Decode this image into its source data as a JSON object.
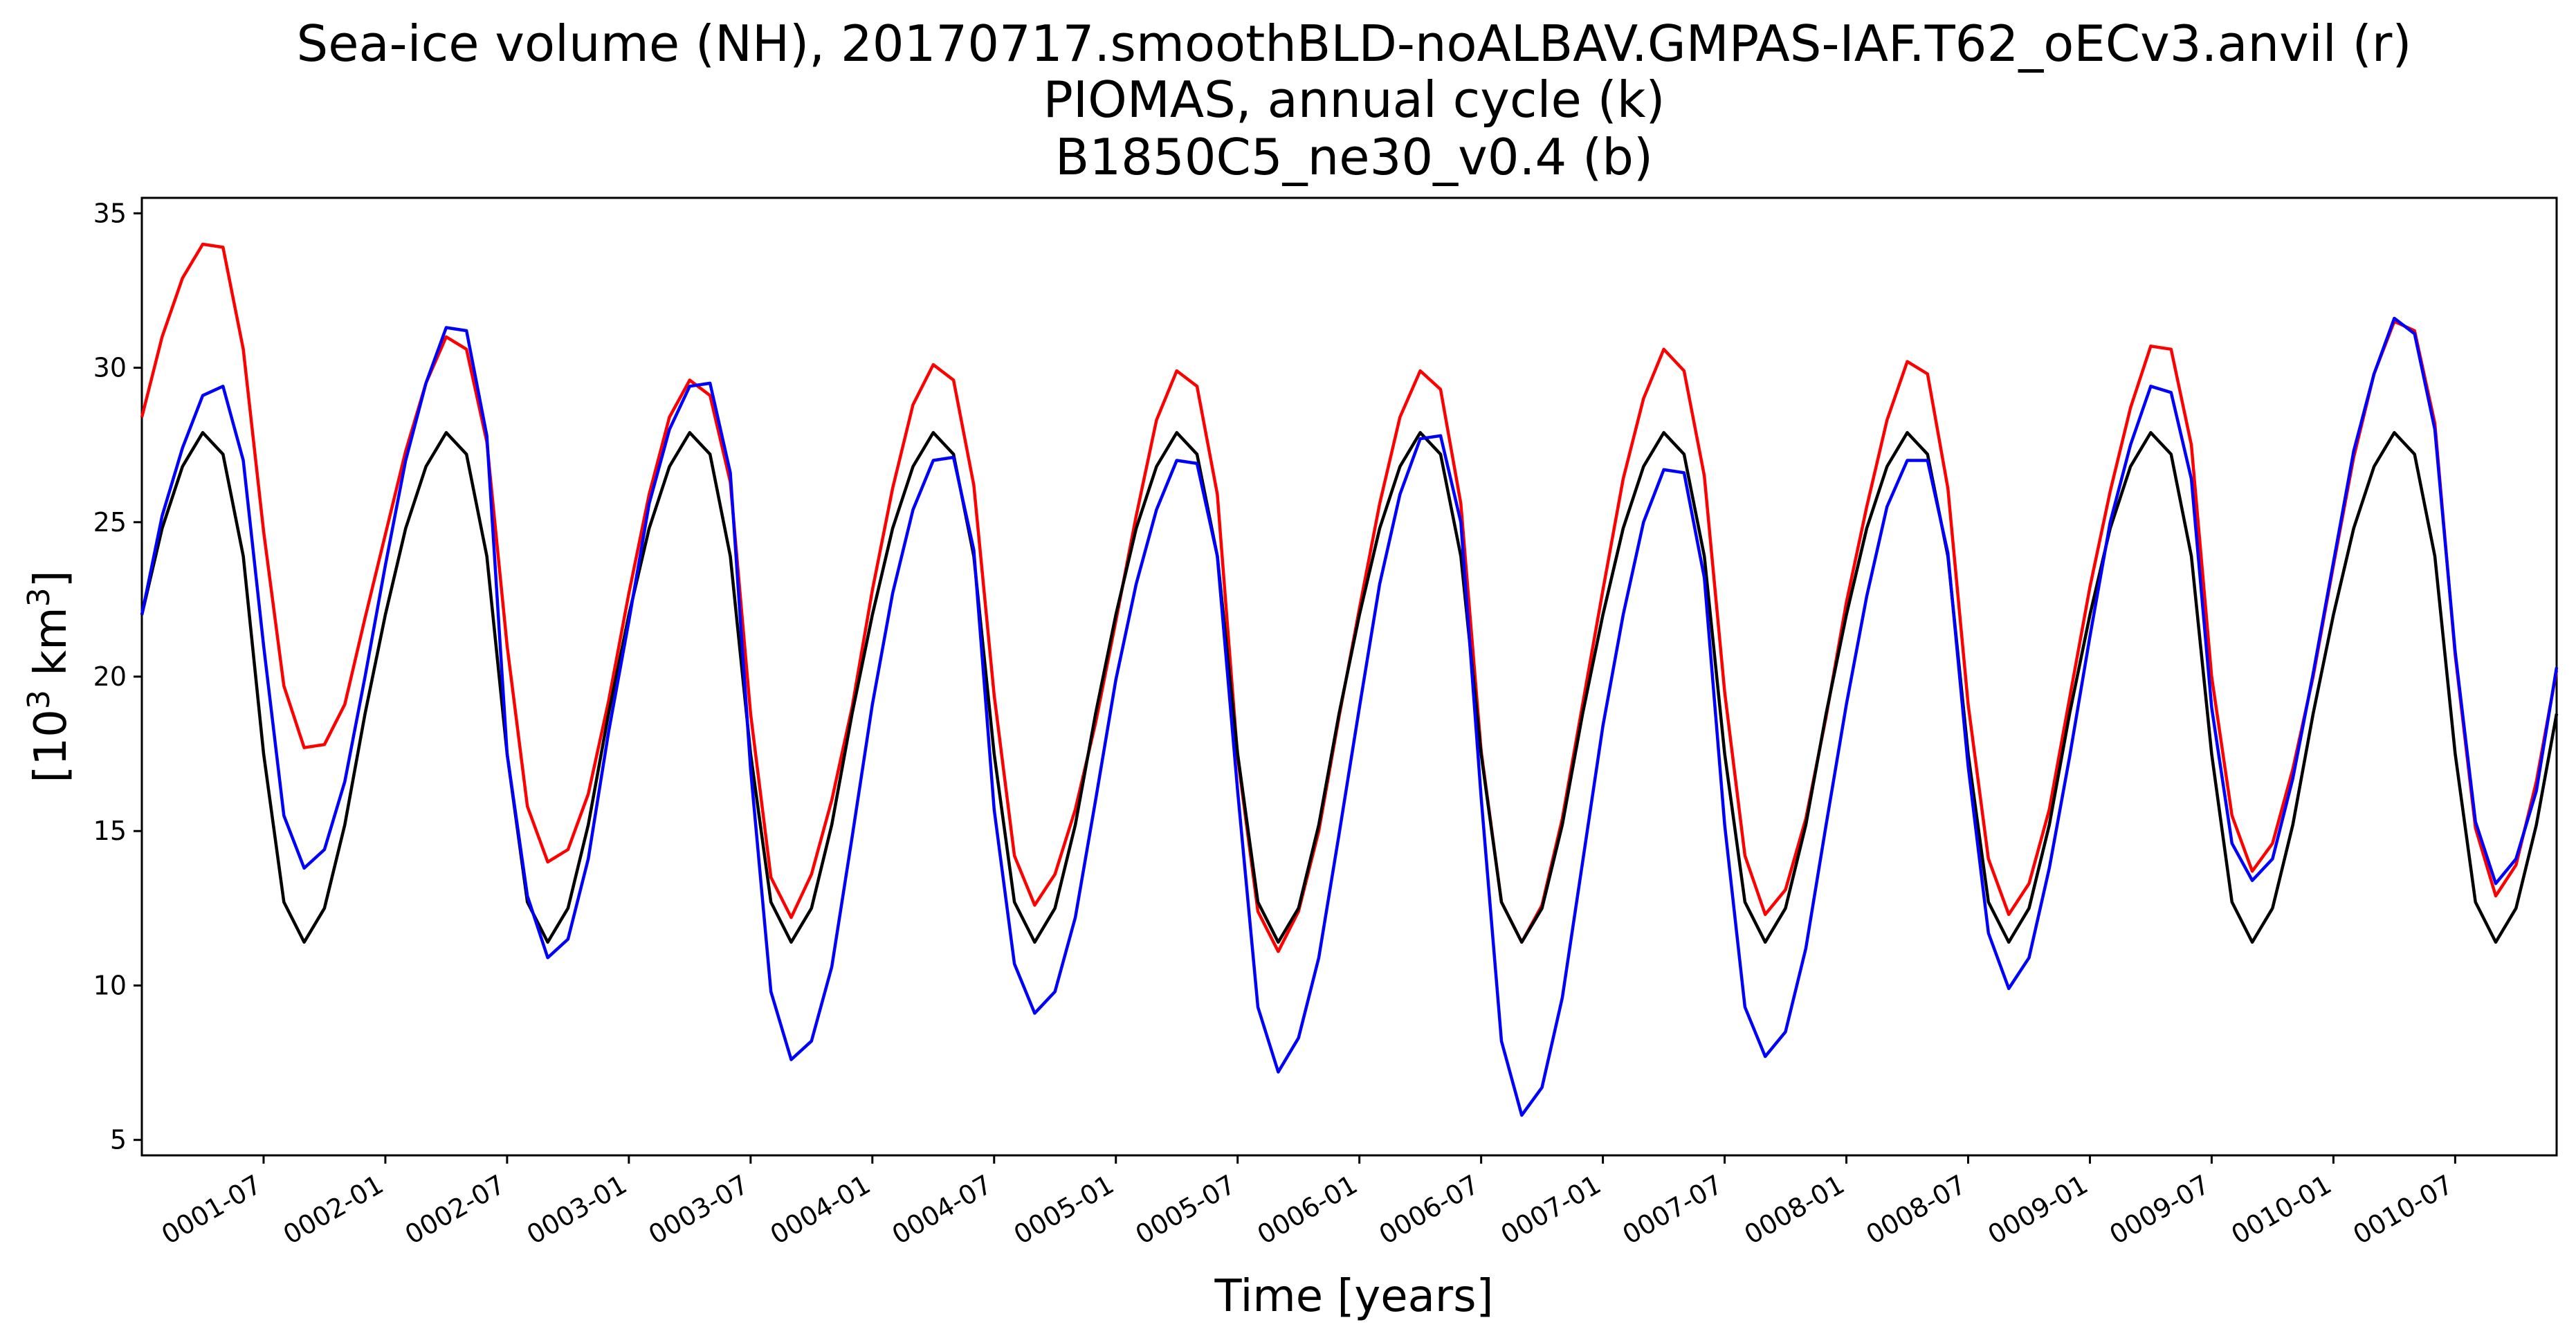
{
  "chart_data": {
    "type": "line",
    "title_lines": [
      "Sea-ice volume (NH), 20170717.smoothBLD-noALBAV.GMPAS-IAF.T62_oECv3.anvil (r)",
      "PIOMAS, annual cycle (k)",
      "B1850C5_ne30_v0.4 (b)"
    ],
    "xlabel": "Time [years]",
    "ylabel_main": "[10",
    "ylabel_exp1": "3",
    "ylabel_mid": " km",
    "ylabel_exp2": "3",
    "ylabel_end": "]",
    "x_start": "0001-01",
    "xlim": [
      "0001-01",
      "0010-12"
    ],
    "ylim": [
      4.5,
      35.5
    ],
    "yticks": [
      5,
      10,
      15,
      20,
      25,
      30,
      35
    ],
    "xticks": [
      "0001-07",
      "0002-01",
      "0002-07",
      "0003-01",
      "0003-07",
      "0004-01",
      "0004-07",
      "0005-01",
      "0005-07",
      "0006-01",
      "0006-07",
      "0007-01",
      "0007-07",
      "0008-01",
      "0008-07",
      "0009-01",
      "0009-07",
      "0010-01",
      "0010-07"
    ],
    "grid": false,
    "colors": {
      "r": "#ff0000",
      "k": "#000000",
      "b": "#0000ff"
    },
    "series": [
      {
        "color": "#ff0000",
        "values": [
          28.4,
          31.0,
          32.9,
          34.0,
          33.9,
          30.6,
          24.7,
          19.7,
          17.7,
          17.8,
          19.1,
          21.9,
          24.6,
          27.3,
          29.5,
          31.0,
          30.6,
          27.6,
          21.0,
          15.8,
          14.0,
          14.4,
          16.2,
          19.2,
          22.7,
          25.9,
          28.4,
          29.6,
          29.1,
          26.3,
          18.8,
          13.5,
          12.2,
          13.6,
          16.0,
          19.0,
          22.8,
          26.1,
          28.8,
          30.1,
          29.6,
          26.2,
          19.4,
          14.2,
          12.6,
          13.6,
          15.7,
          18.5,
          21.8,
          25.2,
          28.3,
          29.9,
          29.4,
          25.9,
          17.4,
          12.4,
          11.1,
          12.4,
          15.0,
          18.7,
          22.2,
          25.6,
          28.4,
          29.9,
          29.3,
          25.6,
          17.6,
          12.7,
          11.4,
          12.6,
          15.4,
          19.1,
          22.8,
          26.4,
          29.0,
          30.6,
          29.9,
          26.5,
          19.5,
          14.2,
          12.3,
          13.1,
          15.4,
          18.7,
          22.4,
          25.5,
          28.3,
          30.2,
          29.8,
          26.1,
          19.1,
          14.1,
          12.3,
          13.3,
          15.7,
          19.3,
          22.9,
          26.0,
          28.7,
          30.7,
          30.6,
          27.5,
          20.0,
          15.5,
          13.7,
          14.6,
          17.0,
          20.0,
          23.6,
          27.1,
          29.8,
          31.5,
          31.2,
          28.2,
          20.7,
          15.1,
          12.9,
          13.9,
          16.6,
          20.2
        ]
      },
      {
        "color": "#000000",
        "values": [
          22.0,
          24.8,
          26.8,
          27.9,
          27.2,
          23.9,
          17.5,
          12.7,
          11.4,
          12.5,
          15.2,
          18.8,
          22.0,
          24.8,
          26.8,
          27.9,
          27.2,
          23.9,
          17.5,
          12.7,
          11.4,
          12.5,
          15.2,
          18.8,
          22.0,
          24.8,
          26.8,
          27.9,
          27.2,
          23.9,
          17.5,
          12.7,
          11.4,
          12.5,
          15.2,
          18.8,
          22.0,
          24.8,
          26.8,
          27.9,
          27.2,
          23.9,
          17.5,
          12.7,
          11.4,
          12.5,
          15.2,
          18.8,
          22.0,
          24.8,
          26.8,
          27.9,
          27.2,
          23.9,
          17.5,
          12.7,
          11.4,
          12.5,
          15.2,
          18.8,
          22.0,
          24.8,
          26.8,
          27.9,
          27.2,
          23.9,
          17.5,
          12.7,
          11.4,
          12.5,
          15.2,
          18.8,
          22.0,
          24.8,
          26.8,
          27.9,
          27.2,
          23.9,
          17.5,
          12.7,
          11.4,
          12.5,
          15.2,
          18.8,
          22.0,
          24.8,
          26.8,
          27.9,
          27.2,
          23.9,
          17.5,
          12.7,
          11.4,
          12.5,
          15.2,
          18.8,
          22.0,
          24.8,
          26.8,
          27.9,
          27.2,
          23.9,
          17.5,
          12.7,
          11.4,
          12.5,
          15.2,
          18.8,
          22.0,
          24.8,
          26.8,
          27.9,
          27.2,
          23.9,
          17.5,
          12.7,
          11.4,
          12.5,
          15.2,
          18.8
        ]
      },
      {
        "color": "#0000ff",
        "values": [
          22.0,
          25.2,
          27.4,
          29.1,
          29.4,
          27.0,
          21.0,
          15.5,
          13.8,
          14.4,
          16.6,
          20.0,
          23.6,
          27.0,
          29.5,
          31.3,
          31.2,
          27.8,
          17.5,
          12.9,
          10.9,
          11.5,
          14.1,
          18.2,
          21.8,
          25.6,
          28.0,
          29.4,
          29.5,
          26.6,
          17.0,
          9.8,
          7.6,
          8.2,
          10.6,
          14.8,
          19.1,
          22.7,
          25.4,
          27.0,
          27.1,
          24.1,
          15.7,
          10.7,
          9.1,
          9.8,
          12.2,
          16.0,
          19.9,
          23.0,
          25.4,
          27.0,
          26.9,
          23.9,
          16.3,
          9.3,
          7.2,
          8.3,
          10.9,
          14.9,
          19.0,
          23.0,
          25.9,
          27.7,
          27.8,
          25.0,
          16.1,
          8.2,
          5.8,
          6.7,
          9.6,
          14.0,
          18.4,
          22.0,
          25.0,
          26.7,
          26.6,
          23.2,
          15.2,
          9.3,
          7.7,
          8.5,
          11.2,
          15.2,
          19.1,
          22.6,
          25.5,
          27.0,
          27.0,
          24.0,
          17.1,
          11.7,
          9.9,
          10.9,
          13.8,
          17.4,
          21.3,
          25.0,
          27.5,
          29.4,
          29.2,
          26.4,
          19.0,
          14.6,
          13.4,
          14.1,
          16.7,
          20.1,
          23.7,
          27.3,
          29.8,
          31.6,
          31.1,
          28.0,
          20.8,
          15.3,
          13.3,
          14.1,
          16.3,
          20.3
        ]
      }
    ]
  }
}
